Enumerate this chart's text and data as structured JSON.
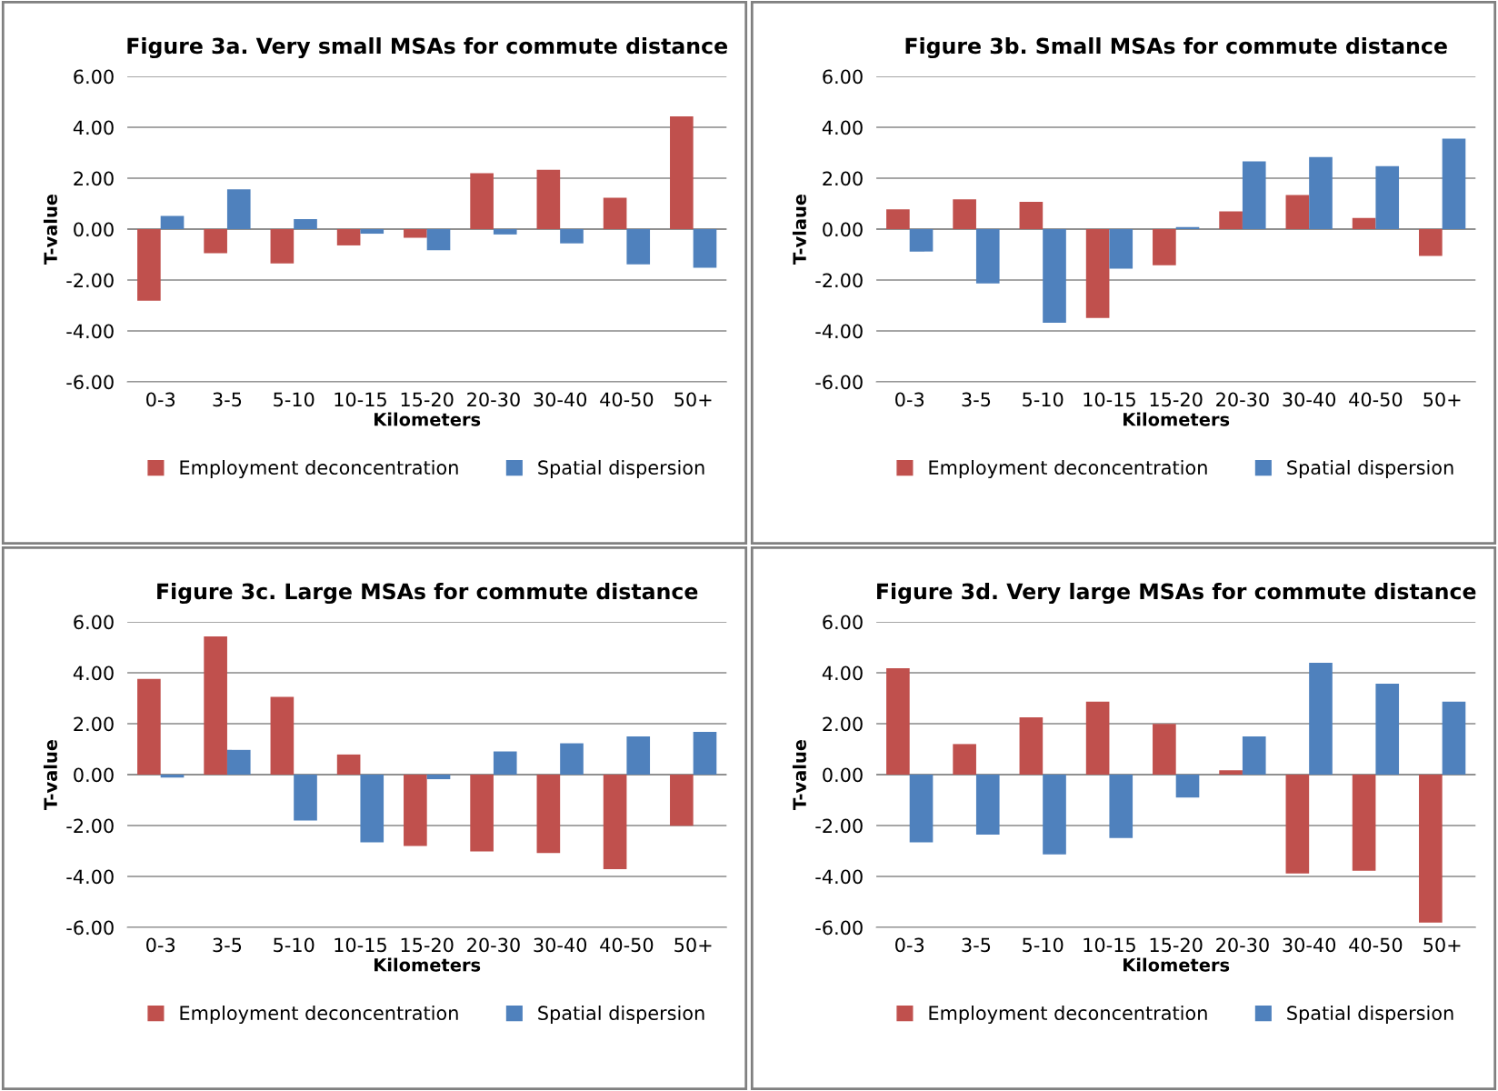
{
  "chart_data": [
    {
      "type": "bar",
      "title": "Figure 3a. Very small MSAs for commute distance",
      "xlabel": "Kilometers",
      "ylabel": "T-value",
      "categories": [
        "0-3",
        "3-5",
        "5-10",
        "10-15",
        "15-20",
        "20-30",
        "30-40",
        "40-50",
        "50+"
      ],
      "series": [
        {
          "name": "Employment deconcentration",
          "color": "#c0504d",
          "values": [
            -2.81,
            -0.95,
            -1.35,
            -0.64,
            -0.34,
            2.2,
            2.33,
            1.23,
            4.43
          ]
        },
        {
          "name": "Spatial dispersion",
          "color": "#4f81bd",
          "values": [
            0.52,
            1.56,
            0.39,
            -0.18,
            -0.83,
            -0.21,
            -0.56,
            -1.38,
            -1.52
          ]
        }
      ],
      "ylim": [
        -6,
        6
      ],
      "yticks": [
        {
          "value": -6,
          "label": "-6.00"
        },
        {
          "value": -4,
          "label": "-4.00"
        },
        {
          "value": -2,
          "label": "-2.00"
        },
        {
          "value": 0,
          "label": "0.00"
        },
        {
          "value": 2,
          "label": "2.00"
        },
        {
          "value": 4,
          "label": "4.00"
        },
        {
          "value": 6,
          "label": "6.00"
        }
      ],
      "grid": "y",
      "legend": "bottom"
    },
    {
      "type": "bar",
      "title": "Figure 3b. Small MSAs for commute distance",
      "xlabel": "Kilometers",
      "ylabel": "T-vlaue",
      "categories": [
        "0-3",
        "3-5",
        "5-10",
        "10-15",
        "15-20",
        "20-30",
        "30-40",
        "40-50",
        "50+"
      ],
      "series": [
        {
          "name": "Employment deconcentration",
          "color": "#c0504d",
          "values": [
            0.78,
            1.17,
            1.07,
            -3.49,
            -1.42,
            0.7,
            1.34,
            0.44,
            -1.05
          ]
        },
        {
          "name": "Spatial dispersion",
          "color": "#4f81bd",
          "values": [
            -0.88,
            -2.13,
            -3.68,
            -1.55,
            0.08,
            2.66,
            2.83,
            2.47,
            3.55
          ]
        }
      ],
      "ylim": [
        -6,
        6
      ],
      "yticks": [
        {
          "value": -6,
          "label": "-6.00"
        },
        {
          "value": -4,
          "label": "-4.00"
        },
        {
          "value": -2,
          "label": "-2.00"
        },
        {
          "value": 0,
          "label": "0.00"
        },
        {
          "value": 2,
          "label": "2.00"
        },
        {
          "value": 4,
          "label": "4.00"
        },
        {
          "value": 6,
          "label": "6.00"
        }
      ],
      "grid": "y",
      "legend": "bottom"
    },
    {
      "type": "bar",
      "title": "Figure 3c. Large MSAs for commute distance",
      "xlabel": "Kilometers",
      "ylabel": "T-value",
      "categories": [
        "0-3",
        "3-5",
        "5-10",
        "10-15",
        "15-20",
        "20-30",
        "30-40",
        "40-50",
        "50+"
      ],
      "series": [
        {
          "name": "Employment deconcentration",
          "color": "#c0504d",
          "values": [
            3.76,
            5.43,
            3.05,
            0.79,
            -2.8,
            -3.02,
            -3.08,
            -3.71,
            -2.01
          ]
        },
        {
          "name": "Spatial dispersion",
          "color": "#4f81bd",
          "values": [
            -0.12,
            0.97,
            -1.8,
            -2.66,
            -0.18,
            0.91,
            1.23,
            1.5,
            1.68
          ]
        }
      ],
      "ylim": [
        -6,
        6
      ],
      "yticks": [
        {
          "value": -6,
          "label": "-6.00"
        },
        {
          "value": -4,
          "label": "-4.00"
        },
        {
          "value": -2,
          "label": "-2.00"
        },
        {
          "value": 0,
          "label": "0.00"
        },
        {
          "value": 2,
          "label": "2.00"
        },
        {
          "value": 4,
          "label": "4.00"
        },
        {
          "value": 6,
          "label": "6.00"
        }
      ],
      "grid": "y",
      "legend": "bottom"
    },
    {
      "type": "bar",
      "title": "Figure 3d. Very large MSAs for commute distance",
      "xlabel": "Kilometers",
      "ylabel": "T-value",
      "categories": [
        "0-3",
        "3-5",
        "5-10",
        "10-15",
        "15-20",
        "20-30",
        "30-40",
        "40-50",
        "50+"
      ],
      "series": [
        {
          "name": "Employment deconcentration",
          "color": "#c0504d",
          "values": [
            4.18,
            1.2,
            2.25,
            2.87,
            1.99,
            0.17,
            -3.88,
            -3.78,
            -5.81
          ]
        },
        {
          "name": "Spatial dispersion",
          "color": "#4f81bd",
          "values": [
            -2.66,
            -2.36,
            -3.13,
            -2.49,
            -0.9,
            1.5,
            4.39,
            3.57,
            2.87
          ]
        }
      ],
      "ylim": [
        -6,
        6
      ],
      "yticks": [
        {
          "value": -6,
          "label": "-6.00"
        },
        {
          "value": -4,
          "label": "-4.00"
        },
        {
          "value": -2,
          "label": "-2.00"
        },
        {
          "value": 0,
          "label": "0.00"
        },
        {
          "value": 2,
          "label": "2.00"
        },
        {
          "value": 4,
          "label": "4.00"
        },
        {
          "value": 6,
          "label": "6.00"
        }
      ],
      "grid": "y",
      "legend": "bottom"
    }
  ]
}
